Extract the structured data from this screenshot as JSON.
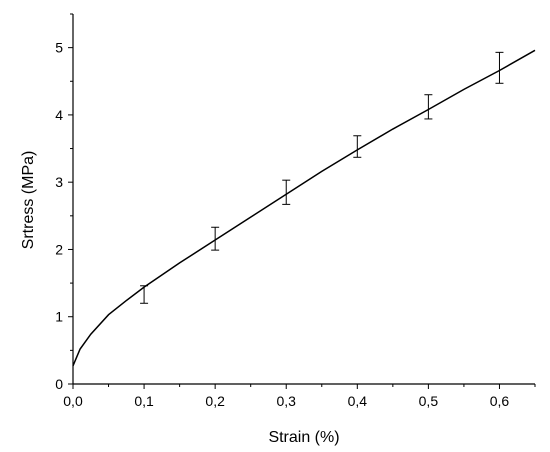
{
  "chart_data": {
    "type": "line",
    "xlabel": "Strain (%)",
    "ylabel": "Srtress (MPa)",
    "xlim": [
      0,
      0.65
    ],
    "ylim": [
      0,
      5.5
    ],
    "x_ticks": [
      0,
      0.1,
      0.2,
      0.3,
      0.4,
      0.5,
      0.6
    ],
    "x_tick_labels": [
      "0,0",
      "0,1",
      "0,2",
      "0,3",
      "0,4",
      "0,5",
      "0,6"
    ],
    "y_ticks": [
      0,
      1,
      2,
      3,
      4,
      5
    ],
    "y_tick_labels": [
      "0",
      "1",
      "2",
      "3",
      "4",
      "5"
    ],
    "grid": false,
    "series": [
      {
        "type": "line",
        "x": [
          0,
          0.01,
          0.025,
          0.05,
          0.075,
          0.1,
          0.15,
          0.2,
          0.25,
          0.3,
          0.35,
          0.4,
          0.45,
          0.5,
          0.55,
          0.6,
          0.65
        ],
        "y": [
          0.27,
          0.52,
          0.74,
          1.03,
          1.24,
          1.44,
          1.8,
          2.14,
          2.48,
          2.82,
          3.16,
          3.48,
          3.79,
          4.08,
          4.38,
          4.66,
          4.96
        ]
      },
      {
        "type": "errorbar",
        "x": [
          0.1,
          0.2,
          0.3,
          0.4,
          0.5,
          0.6
        ],
        "y": [
          1.33,
          2.16,
          2.85,
          3.53,
          4.12,
          4.7
        ],
        "yerr": [
          0.13,
          0.17,
          0.18,
          0.16,
          0.18,
          0.23
        ]
      }
    ]
  }
}
